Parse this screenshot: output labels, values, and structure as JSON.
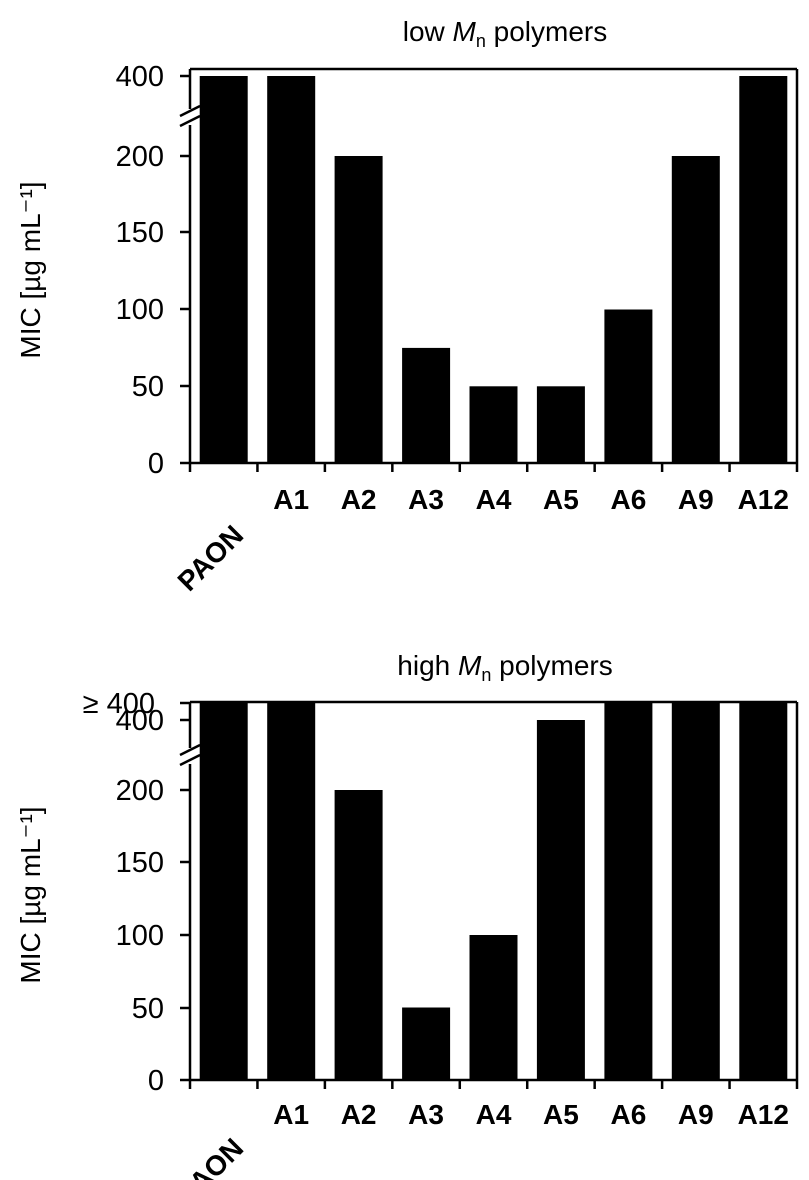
{
  "chart_data": [
    {
      "type": "bar",
      "title_prefix": "low ",
      "title_symbol": "M",
      "title_subscript": "n",
      "title_suffix": " polymers",
      "ylabel": "MIC [µg mL⁻¹]",
      "categories": [
        "PAON",
        "A1",
        "A2",
        "A3",
        "A4",
        "A5",
        "A6",
        "A9",
        "A12"
      ],
      "values": [
        400,
        400,
        200,
        75,
        50,
        50,
        100,
        200,
        400
      ],
      "ylim": [
        0,
        400
      ],
      "axis_break": "between 200 and 400",
      "yticks": [
        "0",
        "50",
        "100",
        "150",
        "200",
        "400"
      ],
      "color": "#000000"
    },
    {
      "type": "bar",
      "title_prefix": "high ",
      "title_symbol": "M",
      "title_subscript": "n",
      "title_suffix": " polymers",
      "ylabel": "MIC [µg mL⁻¹]",
      "categories": [
        "PAON",
        "A1",
        "A2",
        "A3",
        "A4",
        "A5",
        "A6",
        "A9",
        "A12"
      ],
      "values": [
        "≥400",
        "≥400",
        200,
        50,
        100,
        400,
        "≥400",
        "≥400",
        "≥400"
      ],
      "ylim": [
        0,
        400
      ],
      "axis_break": "between 200 and 400",
      "yticks": [
        "0",
        "50",
        "100",
        "150",
        "200",
        "400",
        "≥ 400"
      ],
      "color": "#000000"
    }
  ]
}
